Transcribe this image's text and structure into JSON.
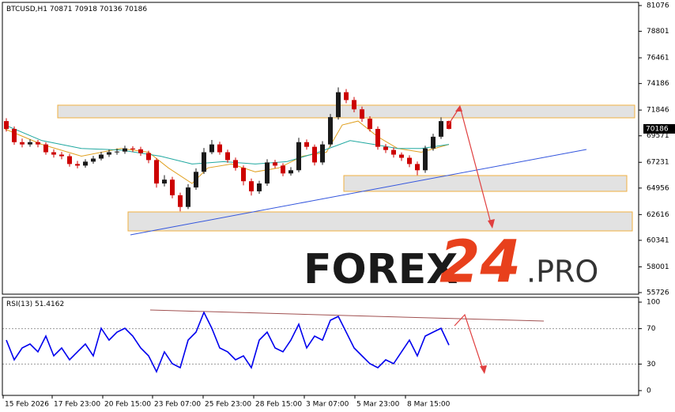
{
  "chart_data": [
    {
      "type": "candlestick",
      "title": "BTCUSD,H1",
      "quote": {
        "open": 70871,
        "high": 70918,
        "low": 70136,
        "close": 70186
      },
      "current_price": 70186,
      "up_color": "#1a1a1a",
      "down_color": "#cc0000",
      "xlim": [
        0,
        805
      ],
      "ylim": [
        55586,
        81355
      ],
      "yticks": [
        81076,
        78801,
        76461,
        74186,
        71846,
        69571,
        67231,
        64956,
        62616,
        60341,
        58001,
        55726
      ],
      "x": [
        5,
        15,
        25,
        35,
        45,
        55,
        65,
        75,
        85,
        95,
        105,
        115,
        125,
        135,
        145,
        155,
        165,
        175,
        185,
        195,
        205,
        215,
        225,
        235,
        245,
        255,
        265,
        275,
        285,
        295,
        305,
        315,
        325,
        335,
        345,
        355,
        365,
        375,
        385,
        395,
        405,
        415,
        425,
        435,
        445,
        455,
        465,
        475,
        485,
        495,
        505,
        515,
        525,
        535,
        545,
        555,
        565
      ],
      "open": [
        70870,
        70180,
        69010,
        68810,
        69010,
        68810,
        68120,
        67910,
        67770,
        67080,
        66940,
        67290,
        67560,
        67910,
        68120,
        68180,
        68460,
        68380,
        68050,
        67430,
        65360,
        65700,
        64320,
        63290,
        65010,
        66390,
        68120,
        68810,
        68120,
        67430,
        66740,
        65560,
        64670,
        65360,
        67220,
        66940,
        66250,
        66530,
        69010,
        68600,
        67220,
        68810,
        71220,
        73420,
        72730,
        71910,
        71080,
        70180,
        68600,
        68320,
        67910,
        67630,
        67080,
        66530,
        68460,
        69490,
        70871
      ],
      "high": [
        71120,
        70400,
        69330,
        69260,
        69200,
        69000,
        68380,
        68150,
        67980,
        67350,
        67500,
        67800,
        68150,
        68350,
        68450,
        68700,
        68650,
        68600,
        68250,
        67600,
        66100,
        65950,
        64550,
        65300,
        66700,
        68500,
        69200,
        69050,
        68350,
        67650,
        66950,
        65800,
        65600,
        67500,
        67450,
        67150,
        66800,
        69400,
        69250,
        68800,
        69100,
        71500,
        73850,
        73700,
        73000,
        72150,
        71300,
        70400,
        68850,
        68550,
        68100,
        67850,
        67300,
        68700,
        69750,
        71200,
        70918
      ],
      "low": [
        69950,
        68780,
        68550,
        68600,
        68560,
        67900,
        67650,
        67500,
        66850,
        66700,
        66750,
        67100,
        67400,
        67700,
        67900,
        67980,
        68150,
        67800,
        67150,
        65000,
        65100,
        64050,
        62900,
        63100,
        64800,
        66200,
        67950,
        67900,
        67200,
        66500,
        65200,
        64300,
        64450,
        65150,
        66700,
        66000,
        66050,
        66350,
        68350,
        66950,
        67000,
        68600,
        71000,
        72450,
        71650,
        70800,
        69950,
        68350,
        68050,
        67650,
        67350,
        66800,
        66100,
        66300,
        68250,
        69300,
        70136
      ],
      "close": [
        70180,
        69010,
        68810,
        69010,
        68810,
        68120,
        67910,
        67770,
        67080,
        66940,
        67290,
        67560,
        67910,
        68120,
        68180,
        68460,
        68380,
        68050,
        67430,
        65360,
        65700,
        64320,
        63290,
        65010,
        66390,
        68120,
        68810,
        68120,
        67430,
        66740,
        65560,
        64670,
        65360,
        67220,
        66940,
        66250,
        66530,
        69010,
        68600,
        67220,
        68810,
        71220,
        73420,
        72730,
        71910,
        71080,
        70180,
        68600,
        68320,
        67910,
        67630,
        67080,
        66530,
        68460,
        69490,
        70870,
        70186
      ],
      "ma": [
        {
          "color": "#e0a020",
          "x": [
            3,
            50,
            100,
            150,
            185,
            210,
            240,
            260,
            290,
            320,
            350,
            380,
            410,
            430,
            450,
            475,
            500,
            530,
            565
          ],
          "values": [
            70180,
            68810,
            67770,
            68460,
            68120,
            66740,
            65360,
            66740,
            67080,
            66390,
            66740,
            67770,
            68120,
            70530,
            70870,
            69490,
            68460,
            68120,
            68810
          ]
        },
        {
          "color": "#20a8a0",
          "x": [
            3,
            50,
            100,
            150,
            200,
            240,
            280,
            320,
            360,
            400,
            440,
            470,
            500,
            530,
            565
          ],
          "values": [
            70530,
            69150,
            68460,
            68320,
            67770,
            67080,
            67290,
            67080,
            67290,
            68120,
            69150,
            68810,
            68460,
            68460,
            68810
          ]
        }
      ]
    },
    {
      "type": "line",
      "title": "RSI(13)",
      "current": 51.4162,
      "color": "#0000ee",
      "xlim": [
        0,
        805
      ],
      "ylim": [
        -5.4,
        105.4
      ],
      "yticks": [
        0,
        30,
        70,
        100
      ],
      "levels": [
        30,
        70
      ],
      "xticks": [
        {
          "value": 1,
          "label": "15 Feb 2026"
        },
        {
          "value": 63,
          "label": "17 Feb 23:00"
        },
        {
          "value": 127,
          "label": "20 Feb 15:00"
        },
        {
          "value": 190,
          "label": "23 Feb 07:00"
        },
        {
          "value": 254,
          "label": "25 Feb 23:00"
        },
        {
          "value": 318,
          "label": "28 Feb 15:00"
        },
        {
          "value": 382,
          "label": "3 Mar 07:00"
        },
        {
          "value": 446,
          "label": "5 Mar 23:00"
        },
        {
          "value": 510,
          "label": "8 Mar 15:00"
        }
      ],
      "x": [
        5,
        15,
        25,
        35,
        45,
        55,
        65,
        75,
        85,
        95,
        105,
        115,
        125,
        135,
        145,
        155,
        165,
        175,
        185,
        195,
        205,
        215,
        225,
        235,
        245,
        255,
        265,
        275,
        285,
        295,
        305,
        315,
        325,
        335,
        345,
        355,
        365,
        375,
        385,
        395,
        405,
        415,
        425,
        435,
        445,
        455,
        465,
        475,
        485,
        495,
        505,
        515,
        525,
        535,
        545,
        555,
        565
      ],
      "values": [
        57.1,
        34.8,
        48.2,
        52.7,
        43.8,
        61.6,
        39.3,
        48.2,
        34.8,
        43.8,
        52.7,
        39.3,
        70.5,
        57.1,
        66.1,
        70.5,
        61.6,
        48.2,
        39.3,
        21.4,
        43.8,
        30.4,
        25.9,
        57.1,
        66.1,
        88.4,
        70.5,
        48.2,
        43.8,
        34.8,
        39.3,
        25.9,
        57.1,
        66.1,
        48.2,
        43.8,
        57.1,
        75,
        48.2,
        61.6,
        57.1,
        79.5,
        83.9,
        66.1,
        48.2,
        39.3,
        30.4,
        25.9,
        34.8,
        30.4,
        43.8,
        57.1,
        39.3,
        61.6,
        66.1,
        70.5,
        51.4162
      ]
    }
  ],
  "watermark": {
    "brand": "FOREX",
    "number": "24",
    "domain": ".PRO"
  }
}
